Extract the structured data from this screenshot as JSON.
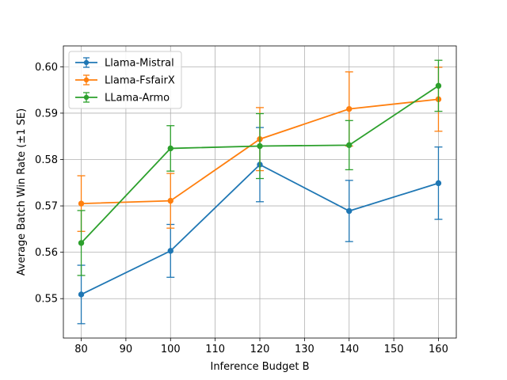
{
  "chart_data": {
    "type": "line",
    "title": "",
    "xlabel": "Inference Budget B",
    "ylabel": "Average Batch Win Rate (±1 SE)",
    "xlim": [
      76,
      164
    ],
    "ylim": [
      0.5415,
      0.6045
    ],
    "xticks": [
      80,
      90,
      100,
      110,
      120,
      130,
      140,
      150,
      160
    ],
    "yticks": [
      0.55,
      0.56,
      0.57,
      0.58,
      0.59,
      0.6
    ],
    "ytick_labels": [
      "0.55",
      "0.56",
      "0.57",
      "0.58",
      "0.59",
      "0.60"
    ],
    "grid": true,
    "legend_position": "top-left",
    "x": [
      80,
      100,
      120,
      140,
      160
    ],
    "series": [
      {
        "name": "Llama-Mistral",
        "color": "#1f77b4",
        "values": [
          0.5509,
          0.5603,
          0.5789,
          0.5689,
          0.5749
        ],
        "errors": [
          0.0063,
          0.0057,
          0.008,
          0.0066,
          0.0078
        ]
      },
      {
        "name": "Llama-FsfairX",
        "color": "#ff7f0e",
        "values": [
          0.5705,
          0.5711,
          0.5844,
          0.5909,
          0.593
        ],
        "errors": [
          0.006,
          0.0059,
          0.0068,
          0.008,
          0.0069
        ]
      },
      {
        "name": "LLama-Armo",
        "color": "#2ca02c",
        "values": [
          0.562,
          0.5824,
          0.5829,
          0.5831,
          0.5959
        ],
        "errors": [
          0.007,
          0.0049,
          0.007,
          0.0053,
          0.0055
        ]
      }
    ]
  }
}
